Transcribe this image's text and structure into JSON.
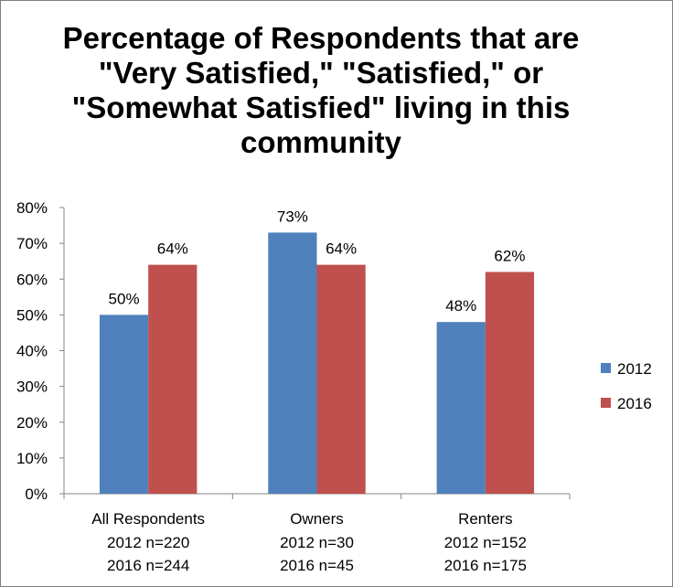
{
  "chart_data": {
    "type": "bar",
    "title_lines": [
      "Percentage of Respondents that are",
      "\"Very Satisfied,\" \"Satisfied,\" or",
      "\"Somewhat Satisfied\" living in this",
      "community"
    ],
    "categories": [
      {
        "name": "All Respondents",
        "sub": [
          "2012 n=220",
          "2016 n=244"
        ]
      },
      {
        "name": "Owners",
        "sub": [
          "2012 n=30",
          "2016 n=45"
        ]
      },
      {
        "name": "Renters",
        "sub": [
          "2012 n=152",
          "2016 n=175"
        ]
      }
    ],
    "series": [
      {
        "name": "2012",
        "color": "#4f81bd",
        "values": [
          50,
          73,
          48
        ],
        "labels": [
          "50%",
          "73%",
          "48%"
        ]
      },
      {
        "name": "2016",
        "color": "#c0504d",
        "values": [
          64,
          64,
          62
        ],
        "labels": [
          "64%",
          "64%",
          "62%"
        ]
      }
    ],
    "ylim": [
      0,
      80
    ],
    "yticks": [
      0,
      10,
      20,
      30,
      40,
      50,
      60,
      70,
      80
    ],
    "ytick_labels": [
      "0%",
      "10%",
      "20%",
      "30%",
      "40%",
      "50%",
      "60%",
      "70%",
      "80%"
    ],
    "grid": false,
    "legend_position": "right"
  }
}
